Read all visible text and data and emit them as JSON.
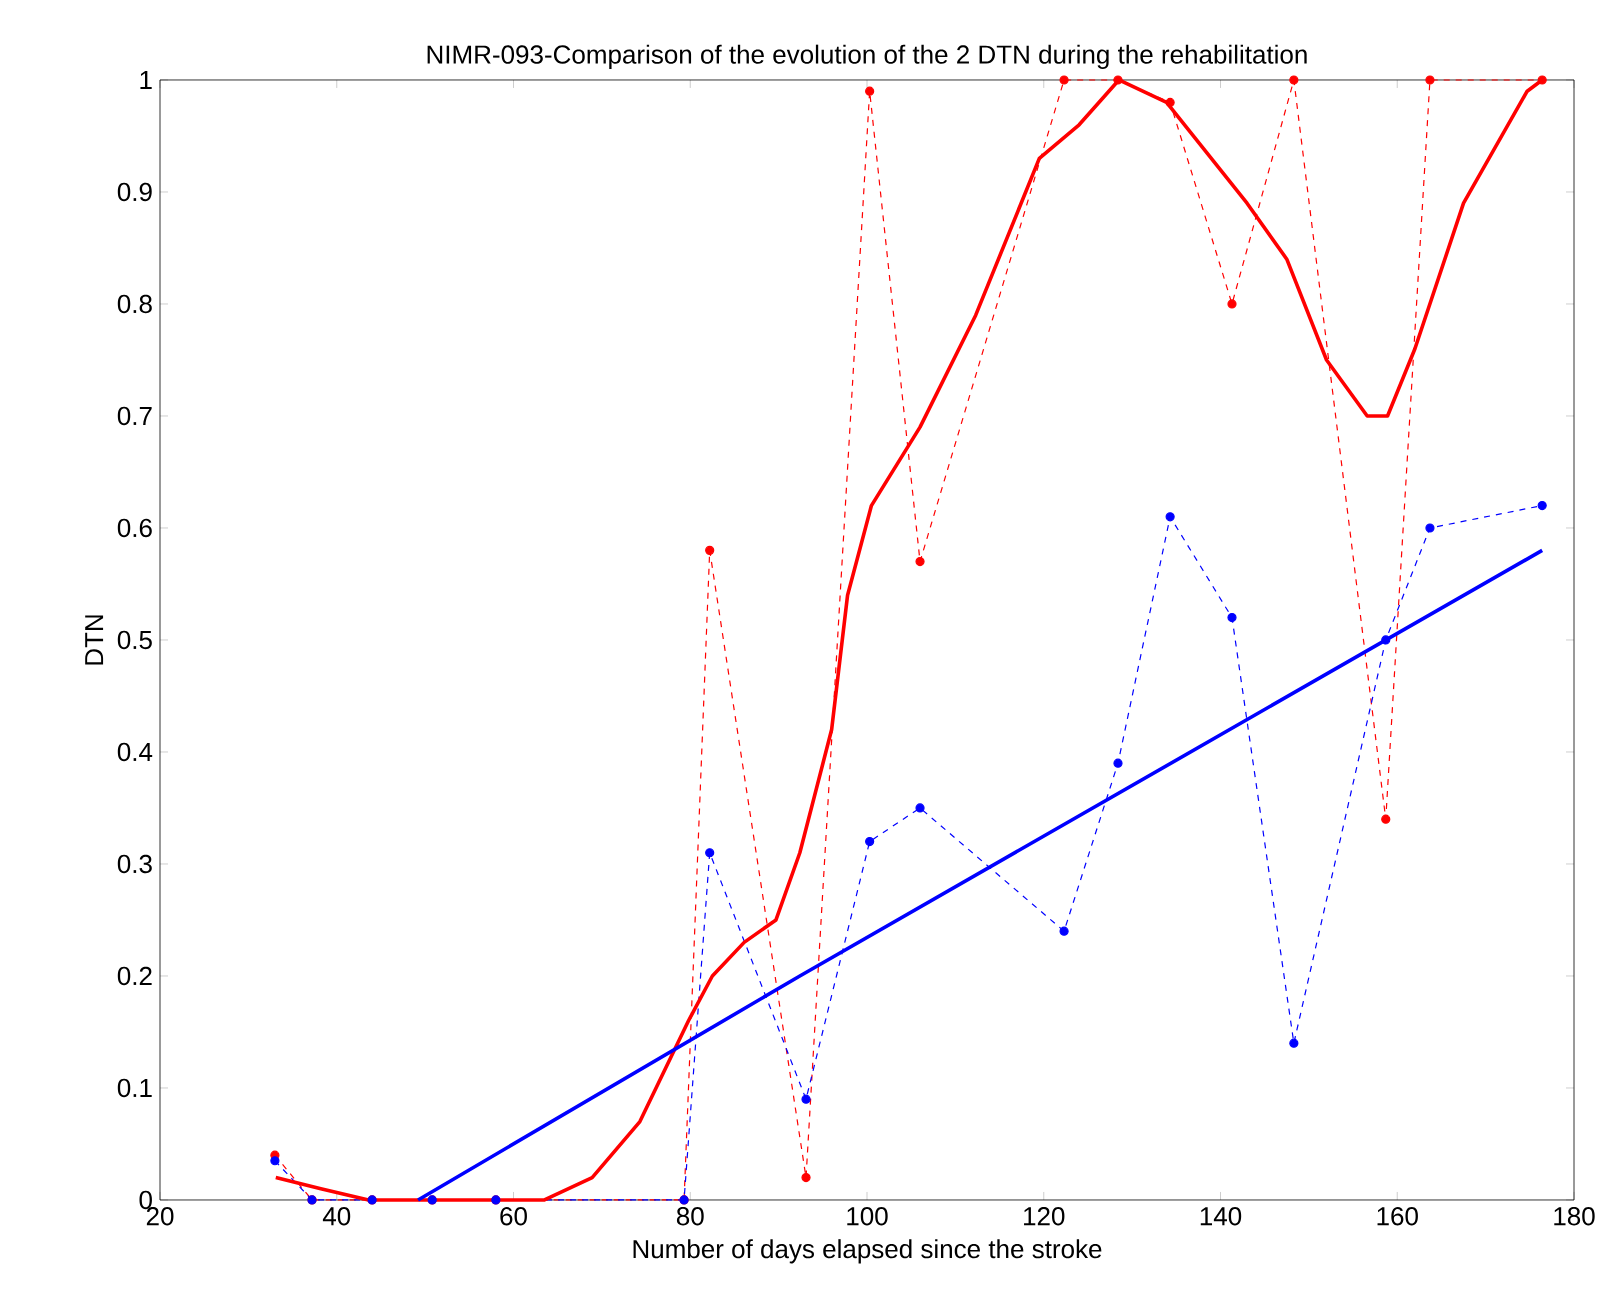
{
  "chart_data": {
    "type": "line",
    "title": "NIMR-093-Comparison of the evolution of the 2 DTN during the rehabilitation",
    "xlabel": "Number of days elapsed since the stroke",
    "ylabel": "DTN",
    "xlim": [
      20,
      180
    ],
    "ylim": [
      0,
      1
    ],
    "xticks": [
      20,
      40,
      60,
      80,
      100,
      120,
      140,
      160,
      180
    ],
    "yticks": [
      0,
      0.1,
      0.2,
      0.3,
      0.4,
      0.5,
      0.6,
      0.7,
      0.8,
      0.9,
      1
    ],
    "grid": false,
    "series": [
      {
        "color": "#ff0000",
        "marker": "circle",
        "line_style": "dashed",
        "x": [
          33,
          37.2,
          44,
          50.8,
          58,
          79.3,
          82.2,
          93.1,
          100.3,
          106,
          122.3,
          128.4,
          134.3,
          141.3,
          148.3,
          158.7,
          163.7,
          176.4
        ],
        "values": [
          0.04,
          0,
          0,
          0,
          0,
          0,
          0.58,
          0.02,
          0.99,
          0.57,
          1,
          1,
          0.98,
          0.8,
          1,
          0.34,
          1,
          1
        ]
      },
      {
        "color": "#0000ff",
        "marker": "circle",
        "line_style": "dashed",
        "x": [
          33,
          37.2,
          44,
          50.8,
          58,
          79.3,
          82.2,
          93.1,
          100.3,
          106,
          122.3,
          128.4,
          134.3,
          141.3,
          148.3,
          158.7,
          163.7,
          176.4
        ],
        "values": [
          0.035,
          0,
          0,
          0,
          0,
          0,
          0.31,
          0.09,
          0.32,
          0.35,
          0.24,
          0.39,
          0.61,
          0.52,
          0.14,
          0.5,
          0.6,
          0.62
        ]
      },
      {
        "color": "#ff0000",
        "marker": "none",
        "line_style": "solid",
        "x": [
          33.1,
          38.2,
          43.6,
          63.5,
          68.9,
          74.3,
          79.8,
          82.5,
          86.1,
          89.7,
          92.4,
          96,
          97.8,
          100.5,
          106,
          112.3,
          119.5,
          124,
          128.5,
          133.9,
          143,
          147.5,
          152,
          156.6,
          158.9,
          162,
          167.5,
          174.7,
          176.4
        ],
        "values": [
          0.02,
          0.01,
          0,
          0,
          0.02,
          0.07,
          0.16,
          0.2,
          0.23,
          0.25,
          0.31,
          0.42,
          0.54,
          0.62,
          0.69,
          0.79,
          0.93,
          0.96,
          1,
          0.98,
          0.89,
          0.84,
          0.75,
          0.7,
          0.7,
          0.76,
          0.89,
          0.99,
          1
        ]
      },
      {
        "color": "#0000ff",
        "marker": "none",
        "line_style": "solid",
        "x": [
          49.2,
          92.4,
          176.4
        ],
        "values": [
          0,
          0.2,
          0.58
        ]
      }
    ]
  }
}
